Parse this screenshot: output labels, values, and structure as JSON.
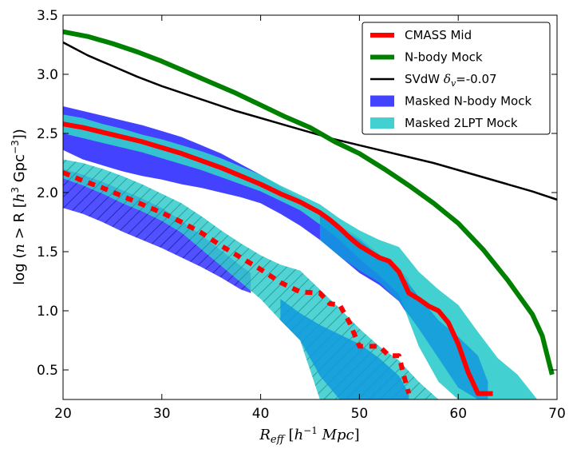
{
  "chart_data": {
    "type": "line",
    "xlabel": "R_eff [h^-1 Mpc]",
    "ylabel": "log (n > R [h^3 Gpc^-3])",
    "xlim": [
      20,
      70
    ],
    "ylim": [
      0.25,
      3.5
    ],
    "xticks": [
      "20",
      "30",
      "40",
      "50",
      "60",
      "70"
    ],
    "yticks": [
      "0.5",
      "1.0",
      "1.5",
      "2.0",
      "2.5",
      "3.0",
      "3.5"
    ],
    "legend_position": "top-right",
    "grid": false,
    "colors": {
      "cmass": "#ff0000",
      "nbody": "#008000",
      "svdw": "#000000",
      "masked_nbody": "#3333ff",
      "masked_2lpt": "#33cccc"
    },
    "legend": [
      {
        "label": "CMASS Mid",
        "kind": "line",
        "color": "#ff0000"
      },
      {
        "label": "N-body Mock",
        "kind": "line",
        "color": "#008000"
      },
      {
        "label": "SVdW δv=-0.07",
        "kind": "line",
        "color": "#000000"
      },
      {
        "label": "Masked N-body Mock",
        "kind": "patch",
        "color": "#3333ff"
      },
      {
        "label": "Masked 2LPT Mock",
        "kind": "patch",
        "color": "#33cccc"
      }
    ],
    "series": [
      {
        "name": "CMASS Mid",
        "style": "solid",
        "x": [
          20,
          22,
          24,
          26,
          28,
          30,
          32,
          34,
          36,
          38,
          40,
          42,
          44,
          46,
          47,
          48,
          49,
          50,
          51,
          52,
          53,
          54,
          55,
          56,
          57,
          58,
          59,
          60,
          61,
          62,
          63,
          63.5
        ],
        "y": [
          2.58,
          2.55,
          2.51,
          2.47,
          2.43,
          2.38,
          2.33,
          2.27,
          2.21,
          2.14,
          2.07,
          1.99,
          1.92,
          1.83,
          1.77,
          1.7,
          1.62,
          1.55,
          1.5,
          1.45,
          1.42,
          1.33,
          1.15,
          1.1,
          1.04,
          1.0,
          0.9,
          0.72,
          0.48,
          0.3,
          0.3,
          0.3
        ]
      },
      {
        "name": "CMASS Mid (dashed)",
        "style": "dashed",
        "x": [
          20,
          22,
          24,
          26,
          28,
          30,
          32,
          34,
          36,
          38,
          40,
          42,
          44,
          46,
          47,
          48,
          49,
          50,
          51,
          52,
          53,
          54,
          54.5,
          55
        ],
        "y": [
          2.17,
          2.1,
          2.04,
          1.97,
          1.9,
          1.83,
          1.75,
          1.66,
          1.55,
          1.45,
          1.35,
          1.24,
          1.16,
          1.15,
          1.06,
          1.05,
          0.9,
          0.7,
          0.7,
          0.7,
          0.62,
          0.62,
          0.45,
          0.3
        ]
      },
      {
        "name": "N-body Mock",
        "style": "solid",
        "x": [
          20,
          22.5,
          25,
          27.5,
          30,
          32.5,
          35,
          37.5,
          40,
          42.5,
          45,
          47.5,
          50,
          52.5,
          55,
          57.5,
          60,
          62.5,
          65,
          67.5,
          68.5,
          69.5
        ],
        "y": [
          3.36,
          3.32,
          3.26,
          3.19,
          3.11,
          3.02,
          2.93,
          2.84,
          2.74,
          2.64,
          2.55,
          2.43,
          2.33,
          2.2,
          2.06,
          1.91,
          1.74,
          1.52,
          1.26,
          0.97,
          0.79,
          0.46
        ]
      },
      {
        "name": "SVdW δv=-0.07",
        "style": "solid",
        "x": [
          20,
          22.5,
          25,
          27.5,
          30,
          32.5,
          35,
          37.5,
          40,
          42.5,
          45,
          47.5,
          50,
          52.5,
          55,
          57.5,
          60,
          62.5,
          65,
          67.5,
          70
        ],
        "y": [
          3.27,
          3.16,
          3.07,
          2.98,
          2.9,
          2.83,
          2.76,
          2.69,
          2.63,
          2.57,
          2.51,
          2.45,
          2.4,
          2.35,
          2.3,
          2.25,
          2.19,
          2.13,
          2.07,
          2.01,
          1.94
        ]
      }
    ],
    "bands": [
      {
        "name": "Masked N-body Mock",
        "style": "solid",
        "color": "#3333ff",
        "x": [
          20,
          22,
          24,
          26,
          28,
          30,
          32,
          34,
          36,
          38,
          40,
          42,
          44,
          46,
          48,
          50,
          52,
          54,
          55
        ],
        "upper": [
          2.73,
          2.69,
          2.65,
          2.61,
          2.57,
          2.52,
          2.47,
          2.4,
          2.33,
          2.24,
          2.15,
          2.05,
          1.95,
          1.84,
          1.72,
          1.62,
          1.48,
          1.35,
          1.27
        ],
        "lower": [
          2.36,
          2.28,
          2.23,
          2.18,
          2.14,
          2.11,
          2.07,
          2.04,
          2.0,
          1.96,
          1.91,
          1.82,
          1.72,
          1.6,
          1.46,
          1.32,
          1.22,
          1.08,
          0.95
        ]
      },
      {
        "name": "Masked 2LPT Mock",
        "style": "solid",
        "color": "#33cccc",
        "x": [
          20,
          22,
          24,
          26,
          28,
          30,
          32,
          34,
          36,
          38,
          40,
          42,
          44,
          46,
          48,
          50,
          52,
          54,
          56,
          58,
          60,
          62,
          64,
          66,
          68
        ],
        "upper": [
          2.66,
          2.63,
          2.58,
          2.54,
          2.49,
          2.45,
          2.4,
          2.35,
          2.29,
          2.22,
          2.15,
          2.06,
          1.98,
          1.9,
          1.78,
          1.68,
          1.6,
          1.54,
          1.33,
          1.18,
          1.05,
          0.82,
          0.6,
          0.46,
          0.25
        ],
        "lower": [
          2.5,
          2.46,
          2.42,
          2.38,
          2.34,
          2.29,
          2.24,
          2.19,
          2.13,
          2.07,
          2.01,
          1.93,
          1.85,
          1.73,
          1.6,
          1.44,
          1.3,
          1.14,
          0.7,
          0.4,
          0.25,
          0.25,
          0.25,
          0.25,
          0.25
        ]
      },
      {
        "name": "Masked N-body Mock (hatched)",
        "style": "hatched",
        "color": "#3333ff",
        "x": [
          20,
          22,
          24,
          26,
          28,
          30,
          32,
          34,
          36,
          38,
          39
        ],
        "upper": [
          2.2,
          2.15,
          2.09,
          2.02,
          1.95,
          1.87,
          1.76,
          1.64,
          1.51,
          1.38,
          1.32
        ],
        "lower": [
          1.87,
          1.82,
          1.75,
          1.67,
          1.6,
          1.53,
          1.45,
          1.37,
          1.28,
          1.18,
          1.15
        ]
      },
      {
        "name": "Masked 2LPT Mock (hatched)",
        "style": "hatched",
        "color": "#33cccc",
        "x": [
          20,
          22,
          24,
          26,
          28,
          30,
          32,
          34,
          36,
          38,
          40,
          42,
          44,
          46,
          47,
          48,
          50,
          52,
          54,
          56,
          58
        ],
        "upper": [
          2.28,
          2.25,
          2.2,
          2.14,
          2.07,
          1.99,
          1.91,
          1.8,
          1.68,
          1.57,
          1.47,
          1.39,
          1.34,
          1.18,
          1.1,
          1.02,
          0.85,
          0.7,
          0.58,
          0.4,
          0.25
        ],
        "lower": [
          2.12,
          2.06,
          1.99,
          1.91,
          1.84,
          1.76,
          1.66,
          1.52,
          1.38,
          1.24,
          1.1,
          0.92,
          0.75,
          0.25,
          0.25,
          0.25,
          0.25,
          0.25,
          0.25,
          0.25,
          0.25
        ]
      },
      {
        "name": "Overlap (dashed region)",
        "style": "overlap",
        "color": "#1199dd",
        "x": [
          42,
          44,
          46,
          48,
          50,
          52,
          54,
          55
        ],
        "upper": [
          1.1,
          0.98,
          0.88,
          0.8,
          0.72,
          0.6,
          0.45,
          0.3
        ],
        "lower": [
          0.92,
          0.75,
          0.45,
          0.25,
          0.25,
          0.25,
          0.25,
          0.25
        ]
      },
      {
        "name": "Overlap (solid region)",
        "style": "overlap",
        "color": "#1199dd",
        "x": [
          46,
          48,
          50,
          52,
          54,
          56,
          58,
          60,
          62,
          63
        ],
        "upper": [
          1.82,
          1.7,
          1.6,
          1.46,
          1.34,
          1.12,
          0.92,
          0.78,
          0.62,
          0.4
        ],
        "lower": [
          1.6,
          1.46,
          1.34,
          1.24,
          1.08,
          0.85,
          0.6,
          0.35,
          0.25,
          0.25
        ]
      }
    ]
  }
}
